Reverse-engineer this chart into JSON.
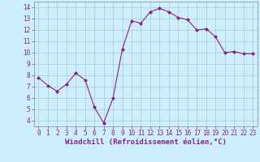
{
  "x": [
    0,
    1,
    2,
    3,
    4,
    5,
    6,
    7,
    8,
    9,
    10,
    11,
    12,
    13,
    14,
    15,
    16,
    17,
    18,
    19,
    20,
    21,
    22,
    23
  ],
  "y": [
    7.8,
    7.1,
    6.6,
    7.2,
    8.2,
    7.6,
    5.2,
    3.8,
    6.0,
    10.3,
    12.8,
    12.6,
    13.6,
    13.9,
    13.6,
    13.1,
    12.9,
    12.0,
    12.1,
    11.4,
    10.0,
    10.1,
    9.9,
    9.9
  ],
  "line_color": "#882288",
  "marker": "D",
  "marker_size": 2.0,
  "bg_color": "#cceeff",
  "grid_color": "#aacccc",
  "xlabel": "Windchill (Refroidissement éolien,°C)",
  "xlim": [
    -0.5,
    23.5
  ],
  "ylim": [
    3.5,
    14.5
  ],
  "yticks": [
    4,
    5,
    6,
    7,
    8,
    9,
    10,
    11,
    12,
    13,
    14
  ],
  "xticks": [
    0,
    1,
    2,
    3,
    4,
    5,
    6,
    7,
    8,
    9,
    10,
    11,
    12,
    13,
    14,
    15,
    16,
    17,
    18,
    19,
    20,
    21,
    22,
    23
  ],
  "tick_label_size": 5.5,
  "xlabel_size": 6.5,
  "label_color": "#882288",
  "spine_color": "#888888"
}
